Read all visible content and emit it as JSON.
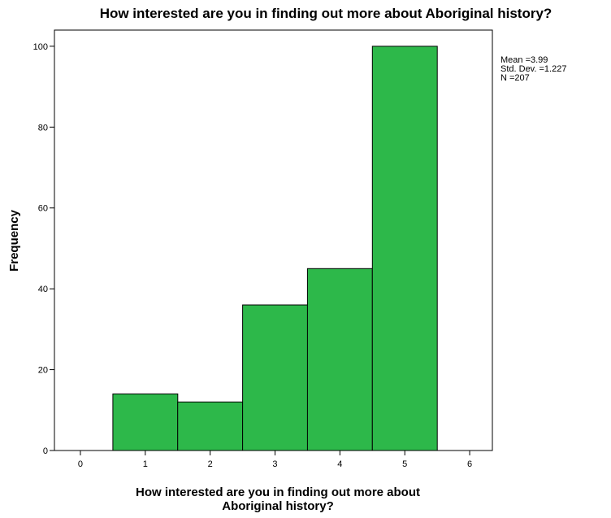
{
  "chart_data": {
    "type": "bar",
    "title": "How interested are you in finding out more about Aboriginal history?",
    "xlabel_lines": [
      "How interested are you in finding out more about",
      "Aboriginal history?"
    ],
    "ylabel": "Frequency",
    "categories": [
      "1",
      "2",
      "3",
      "4",
      "5"
    ],
    "x_centers": [
      1,
      2,
      3,
      4,
      5
    ],
    "values": [
      14,
      12,
      36,
      45,
      100
    ],
    "xlim": [
      -0.4,
      6.35
    ],
    "ylim": [
      0,
      104
    ],
    "xticks": [
      "0",
      "1",
      "2",
      "3",
      "4",
      "5",
      "6"
    ],
    "yticks": [
      "0",
      "20",
      "40",
      "60",
      "80",
      "100"
    ],
    "bar_color": "#2db84a",
    "grid": false,
    "legend": "none"
  },
  "stats": {
    "mean": "Mean =3.99",
    "std_dev": "Std. Dev. =1.227",
    "n": "N =207"
  }
}
